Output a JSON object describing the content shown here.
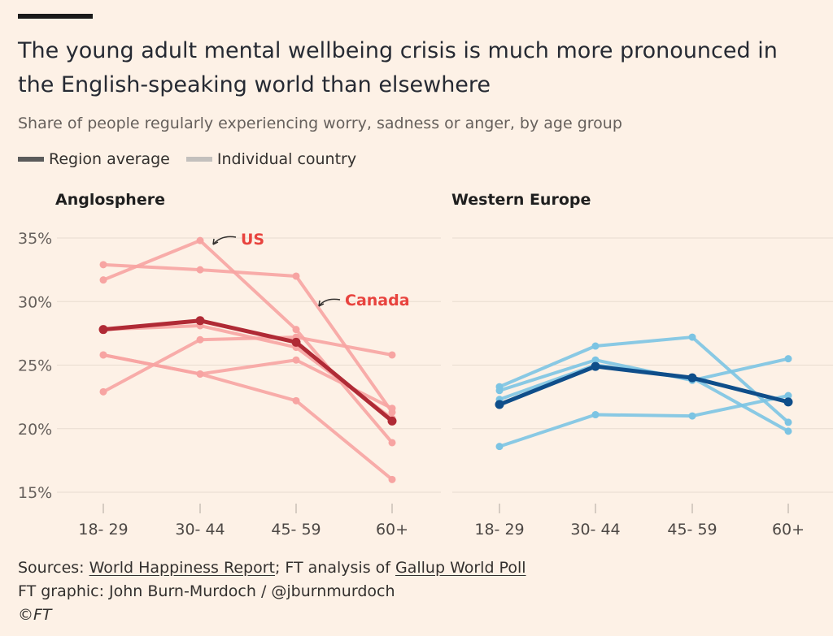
{
  "header": {
    "title": "The young adult mental wellbeing crisis is much more pronounced in the English-speaking world than elsewhere",
    "subtitle": "Share of people regularly experiencing worry, sadness or anger, by age group"
  },
  "legend": {
    "region_label": "Region average",
    "country_label": "Individual country"
  },
  "footer": {
    "sources_prefix": "Sources: ",
    "source_1": "World Happiness Report",
    "sources_mid": "; FT analysis of ",
    "source_2": "Gallup World Poll",
    "credit": "FT graphic: John Burn-Murdoch / @jburnmurdoch",
    "copyright": "©FT"
  },
  "colors": {
    "background": "#fdf1e6",
    "angl_country": "#f7a4a2",
    "angl_avg": "#b02a35",
    "angl_label": "#e8433e",
    "we_country": "#7cc4e3",
    "we_avg": "#0f4e8a"
  },
  "chart_data": [
    {
      "type": "line",
      "title": "Anglosphere",
      "categories": [
        "18- 29",
        "30- 44",
        "45- 59",
        "60+"
      ],
      "yticks": [
        "15%",
        "20%",
        "25%",
        "30%",
        "35%"
      ],
      "ylim": [
        15,
        35
      ],
      "grid": true,
      "average": {
        "values": [
          27.8,
          28.5,
          26.8,
          20.6
        ]
      },
      "series": [
        {
          "name": "US",
          "values": [
            31.7,
            34.8,
            27.8,
            18.9
          ]
        },
        {
          "name": "Canada",
          "values": [
            32.9,
            32.5,
            32.0,
            21.3
          ]
        },
        {
          "name": "",
          "values": [
            25.8,
            24.3,
            22.2,
            16.0
          ]
        },
        {
          "name": "",
          "values": [
            22.9,
            27.0,
            27.2,
            25.8
          ]
        },
        {
          "name": "",
          "values": [
            25.8,
            24.3,
            25.4,
            21.6
          ]
        },
        {
          "name": "",
          "values": [
            27.8,
            28.1,
            26.4,
            20.8
          ]
        }
      ]
    },
    {
      "type": "line",
      "title": "Western Europe",
      "categories": [
        "18- 29",
        "30- 44",
        "45- 59",
        "60+"
      ],
      "ylim": [
        15,
        35
      ],
      "grid": true,
      "average": {
        "values": [
          21.9,
          24.9,
          24.0,
          22.1
        ]
      },
      "series": [
        {
          "name": "",
          "values": [
            23.3,
            26.5,
            27.2,
            20.5
          ]
        },
        {
          "name": "",
          "values": [
            23.0,
            25.4,
            23.8,
            25.5
          ]
        },
        {
          "name": "",
          "values": [
            22.3,
            25.0,
            24.0,
            19.8
          ]
        },
        {
          "name": "",
          "values": [
            18.6,
            21.1,
            21.0,
            22.6
          ]
        }
      ]
    }
  ]
}
